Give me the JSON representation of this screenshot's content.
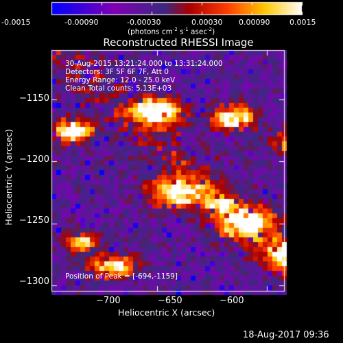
{
  "chart_data": {
    "type": "heatmap",
    "title": "Reconstructed RHESSI Image",
    "colorbar": {
      "min": -0.0015,
      "max": 0.0015,
      "ticks": [
        -0.0015,
        -0.0009,
        -0.0003,
        0.0003,
        0.0009,
        0.0015
      ],
      "tick_labels": [
        "-0.0015",
        "-0.00090",
        "-0.00030",
        "0.00030",
        "0.00090",
        "0.0015"
      ],
      "units_label": "(photons cm",
      "units_sup1": "-2",
      "units_mid": " s",
      "units_sup2": "-1",
      "units_end": " asec",
      "units_sup3": "-2",
      "units_close": ")"
    },
    "xlabel": "Heliocentric X (arcsec)",
    "ylabel": "Heliocentric Y (arcsec)",
    "xlim": [
      -748,
      -642
    ],
    "ylim": [
      -1305,
      -1110
    ],
    "x_ticks": [
      -700,
      -650,
      -600
    ],
    "x_tick_labels": [
      "−700",
      "−650",
      "−600"
    ],
    "y_ticks": [
      -1150,
      -1200,
      -1250,
      -1300
    ],
    "y_tick_labels": [
      "−1150",
      "−1200",
      "−1250",
      "−1300"
    ],
    "info_lines": [
      "30-Aug-2015 13:21:24.000 to 13:31:24.000",
      "Detectors: 3F 5F 6F 7F, Att 0",
      "Energy Range: 12.0 - 25.0 keV",
      "Clean     Total counts: 5.13E+03"
    ],
    "peak_label": "Position of Peak = [-694,-1159]",
    "peak_position": [
      -694,
      -1159
    ],
    "grid": false
  },
  "footer": {
    "timestamp": "18-Aug-2017 09:36"
  }
}
